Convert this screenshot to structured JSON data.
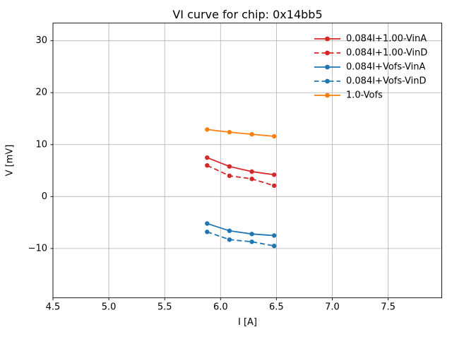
{
  "figure": {
    "background": "#ffffff"
  },
  "chart_data": {
    "type": "line",
    "title": "VI curve for chip: 0x14bb5",
    "xlabel": "I [A]",
    "ylabel": "V [mV]",
    "xlim": [
      4.5,
      7.98
    ],
    "ylim": [
      -19.5,
      33.4
    ],
    "grid": true,
    "grid_color": "#b0b0b0",
    "axis_color": "#000000",
    "xticks": {
      "values": [
        4.5,
        5.0,
        5.5,
        6.0,
        6.5,
        7.0,
        7.5
      ],
      "labels": [
        "4.5",
        "5.0",
        "5.5",
        "6.0",
        "6.5",
        "7.0",
        "7.5"
      ]
    },
    "yticks": {
      "values": [
        -10,
        0,
        10,
        20,
        30
      ],
      "labels": [
        "−10",
        "0",
        "10",
        "20",
        "30"
      ]
    },
    "x": [
      5.88,
      6.08,
      6.28,
      6.48
    ],
    "series": [
      {
        "name": "0.084I+1.00-VinA",
        "color": "#d62728",
        "style": "solid",
        "marker": "circle",
        "values": [
          7.5,
          5.8,
          4.8,
          4.2
        ]
      },
      {
        "name": "0.084I+1.00-VinD",
        "color": "#d62728",
        "style": "dashed",
        "marker": "circle",
        "values": [
          6.0,
          4.0,
          3.4,
          2.1
        ]
      },
      {
        "name": "0.084I+Vofs-VinA",
        "color": "#1f77b4",
        "style": "solid",
        "marker": "circle",
        "values": [
          -5.2,
          -6.6,
          -7.2,
          -7.5
        ]
      },
      {
        "name": "0.084I+Vofs-VinD",
        "color": "#1f77b4",
        "style": "dashed",
        "marker": "circle",
        "values": [
          -6.8,
          -8.3,
          -8.7,
          -9.5
        ]
      },
      {
        "name": "1.0-Vofs",
        "color": "#ff7f0e",
        "style": "solid",
        "marker": "circle",
        "values": [
          12.9,
          12.4,
          12.0,
          11.6
        ]
      }
    ],
    "legend": {
      "position": "upper right",
      "frame": false
    }
  }
}
